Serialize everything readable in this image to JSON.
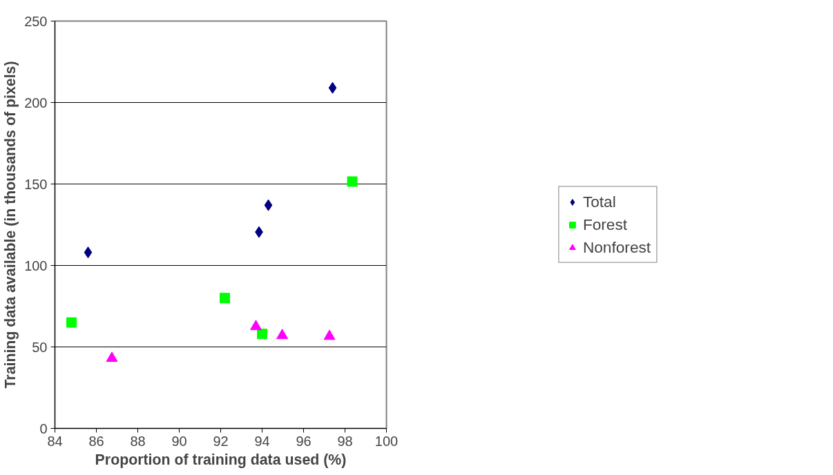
{
  "chart_data": {
    "type": "scatter",
    "xlabel": "Proportion of training data used (%)",
    "ylabel": "Training data available (in thousands of pixels)",
    "xlim": [
      84,
      100
    ],
    "xticks": [
      84,
      86,
      88,
      90,
      92,
      94,
      96,
      98,
      100
    ],
    "ylim": [
      0,
      250
    ],
    "yticks": [
      0,
      50,
      100,
      150,
      200,
      250
    ],
    "grid": "y",
    "legend": "right",
    "series": [
      {
        "name": "Total",
        "color": "#000080",
        "marker": "diamond",
        "x": [
          85.6,
          93.85,
          94.3,
          97.4
        ],
        "values": [
          108,
          120.5,
          137,
          209
        ]
      },
      {
        "name": "Forest",
        "color": "#00ff00",
        "marker": "square",
        "x": [
          84.8,
          92.2,
          94.0,
          98.35
        ],
        "values": [
          65,
          80,
          58,
          151.5
        ]
      },
      {
        "name": "Nonforest",
        "color": "#ff00ff",
        "marker": "triangle",
        "x": [
          86.75,
          93.7,
          94.97,
          97.25
        ],
        "values": [
          43,
          62.5,
          57,
          56.5
        ]
      }
    ]
  }
}
